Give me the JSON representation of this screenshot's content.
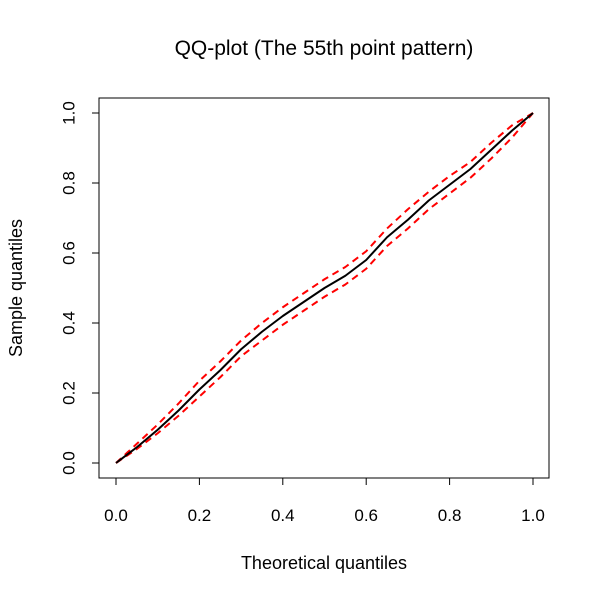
{
  "chart_data": {
    "type": "line",
    "title": "QQ-plot (The 55th point pattern)",
    "xlabel": "Theoretical quantiles",
    "ylabel": "Sample quantiles",
    "xlim": [
      0,
      1
    ],
    "ylim": [
      0,
      1
    ],
    "x_ticks": [
      "0.0",
      "0.2",
      "0.4",
      "0.6",
      "0.8",
      "1.0"
    ],
    "y_ticks": [
      "0.0",
      "0.2",
      "0.4",
      "0.6",
      "0.8",
      "1.0"
    ],
    "grid": false,
    "legend": "none",
    "series": [
      {
        "role": "observed",
        "color": "#000000",
        "style": "solid",
        "x": [
          0,
          0.05,
          0.1,
          0.15,
          0.2,
          0.25,
          0.3,
          0.35,
          0.4,
          0.45,
          0.5,
          0.55,
          0.6,
          0.65,
          0.7,
          0.75,
          0.8,
          0.85,
          0.9,
          0.95,
          1.0
        ],
        "y": [
          0,
          0.045,
          0.095,
          0.15,
          0.21,
          0.265,
          0.325,
          0.375,
          0.42,
          0.46,
          0.5,
          0.535,
          0.58,
          0.645,
          0.695,
          0.75,
          0.795,
          0.84,
          0.895,
          0.95,
          1.0
        ]
      },
      {
        "role": "upper envelope",
        "color": "#ff0000",
        "style": "dashed",
        "x": [
          0,
          0.05,
          0.1,
          0.15,
          0.2,
          0.25,
          0.3,
          0.35,
          0.4,
          0.45,
          0.5,
          0.55,
          0.6,
          0.65,
          0.7,
          0.75,
          0.8,
          0.85,
          0.9,
          0.95,
          1.0
        ],
        "y": [
          0,
          0.055,
          0.11,
          0.17,
          0.235,
          0.29,
          0.35,
          0.4,
          0.445,
          0.485,
          0.525,
          0.56,
          0.605,
          0.67,
          0.725,
          0.775,
          0.82,
          0.86,
          0.915,
          0.965,
          1.0
        ]
      },
      {
        "role": "lower envelope",
        "color": "#ff0000",
        "style": "dashed",
        "x": [
          0,
          0.05,
          0.1,
          0.15,
          0.2,
          0.25,
          0.3,
          0.35,
          0.4,
          0.45,
          0.5,
          0.55,
          0.6,
          0.65,
          0.7,
          0.75,
          0.8,
          0.85,
          0.9,
          0.95,
          1.0
        ],
        "y": [
          0,
          0.04,
          0.085,
          0.135,
          0.19,
          0.245,
          0.305,
          0.35,
          0.395,
          0.435,
          0.475,
          0.51,
          0.555,
          0.62,
          0.67,
          0.725,
          0.77,
          0.815,
          0.87,
          0.93,
          1.0
        ]
      }
    ]
  }
}
